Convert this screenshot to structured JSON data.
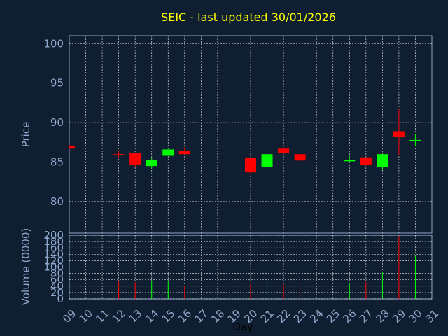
{
  "chart_data": [
    {
      "type": "candlestick",
      "title": "SEIC - last updated 30/01/2026",
      "ylabel": "Price",
      "ylim": [
        76,
        101
      ],
      "yticks": [
        80,
        85,
        90,
        95,
        100
      ],
      "grid": true,
      "colors": {
        "up": "#00ff00",
        "down": "#ff0000",
        "text": "#8fa8cc",
        "title": "#ffff00",
        "background": "#0f1e30"
      },
      "days": [
        "09",
        "12",
        "13",
        "14",
        "15",
        "16",
        "20",
        "21",
        "22",
        "23",
        "26",
        "27",
        "28",
        "29",
        "30"
      ],
      "open": [
        87.0,
        86.0,
        86.1,
        84.5,
        85.8,
        86.4,
        85.5,
        84.4,
        86.7,
        86.0,
        85.1,
        85.6,
        84.4,
        88.9,
        87.8
      ],
      "high": [
        87.2,
        86.4,
        86.1,
        85.5,
        86.6,
        86.9,
        85.7,
        86.8,
        86.9,
        86.0,
        85.8,
        85.6,
        86.0,
        91.7,
        88.5
      ],
      "low": [
        86.7,
        85.6,
        84.4,
        84.2,
        85.8,
        86.0,
        83.4,
        84.3,
        86.0,
        84.8,
        84.9,
        84.5,
        84.0,
        85.9,
        87.0
      ],
      "close": [
        86.7,
        85.9,
        84.7,
        85.3,
        86.6,
        86.0,
        83.7,
        86.0,
        86.2,
        85.2,
        85.3,
        84.6,
        86.0,
        88.2,
        87.8
      ]
    },
    {
      "type": "bar",
      "ylabel": "Volume (0000)",
      "xlabel": "Day",
      "ylim": [
        0,
        200
      ],
      "yticks": [
        0,
        20,
        40,
        60,
        80,
        100,
        120,
        140,
        160,
        180,
        200
      ],
      "xticks": [
        "09",
        "10",
        "11",
        "12",
        "13",
        "14",
        "15",
        "16",
        "17",
        "18",
        "19",
        "20",
        "21",
        "22",
        "23",
        "24",
        "25",
        "26",
        "27",
        "28",
        "29",
        "30",
        "31"
      ],
      "grid": true,
      "days": [
        "09",
        "12",
        "13",
        "14",
        "15",
        "16",
        "20",
        "21",
        "22",
        "23",
        "26",
        "27",
        "28",
        "29",
        "30"
      ],
      "values": [
        0,
        55,
        52,
        55,
        55,
        40,
        50,
        55,
        45,
        50,
        48,
        53,
        85,
        198,
        135
      ],
      "direction": [
        "down",
        "down",
        "down",
        "up",
        "up",
        "down",
        "down",
        "up",
        "down",
        "down",
        "up",
        "down",
        "up",
        "down",
        "up"
      ]
    }
  ]
}
